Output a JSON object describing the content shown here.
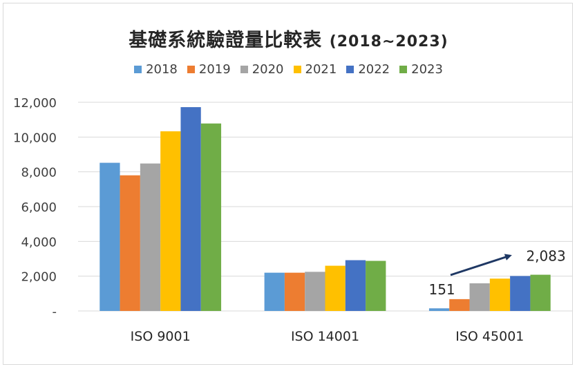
{
  "chart_data": {
    "type": "bar",
    "title": "基礎系統驗證量比較表",
    "subtitle": "(2018~2023)",
    "categories": [
      "ISO 9001",
      "ISO 14001",
      "ISO 45001"
    ],
    "series": [
      {
        "name": "2018",
        "color": "#5b9bd5",
        "values": [
          8520,
          2200,
          151
        ]
      },
      {
        "name": "2019",
        "color": "#ed7d31",
        "values": [
          7800,
          2200,
          680
        ]
      },
      {
        "name": "2020",
        "color": "#a5a5a5",
        "values": [
          8480,
          2250,
          1590
        ]
      },
      {
        "name": "2021",
        "color": "#ffc000",
        "values": [
          10330,
          2600,
          1860
        ]
      },
      {
        "name": "2022",
        "color": "#4472c4",
        "values": [
          11720,
          2920,
          2010
        ]
      },
      {
        "name": "2023",
        "color": "#70ad47",
        "values": [
          10780,
          2880,
          2083
        ]
      }
    ],
    "ylim": [
      0,
      12000
    ],
    "yticks": [
      {
        "value": 0,
        "label": "-"
      },
      {
        "value": 2000,
        "label": "2,000"
      },
      {
        "value": 4000,
        "label": "4,000"
      },
      {
        "value": 6000,
        "label": "6,000"
      },
      {
        "value": 8000,
        "label": "8,000"
      },
      {
        "value": 10000,
        "label": "10,000"
      },
      {
        "value": 12000,
        "label": "12,000"
      }
    ],
    "legend_position": "top",
    "grid": true,
    "annotations": [
      {
        "text": "151",
        "category": "ISO 45001",
        "series": "2018"
      },
      {
        "text": "2,083",
        "category": "ISO 45001",
        "series": "2023"
      }
    ],
    "arrow_color": "#1f3864"
  }
}
